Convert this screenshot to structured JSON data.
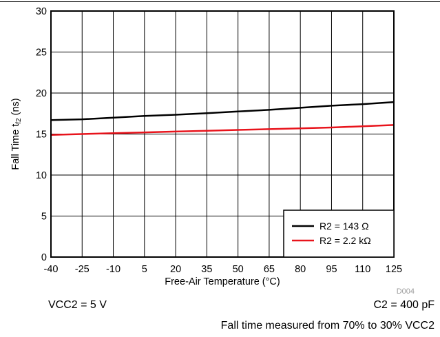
{
  "chart_data": {
    "type": "line",
    "xlabel": "Free-Air Temperature (°C)",
    "ylabel_prefix": "Fall Time t",
    "ylabel_sub": "f2",
    "ylabel_suffix": " (ns)",
    "xlim": [
      -40,
      125
    ],
    "ylim": [
      0,
      30
    ],
    "xticks": [
      -40,
      -25,
      -10,
      5,
      20,
      35,
      50,
      65,
      80,
      95,
      110,
      125
    ],
    "yticks": [
      0,
      5,
      10,
      15,
      20,
      25,
      30
    ],
    "grid": true,
    "legend_position": "bottom-right",
    "figure_id": "D004",
    "x": [
      -40,
      -25,
      -10,
      5,
      20,
      35,
      50,
      65,
      80,
      95,
      110,
      125
    ],
    "series": [
      {
        "name": "R2 = 143 Ω",
        "color": "#000000",
        "values": [
          16.7,
          16.8,
          17.0,
          17.2,
          17.35,
          17.55,
          17.75,
          17.95,
          18.2,
          18.45,
          18.65,
          18.9
        ]
      },
      {
        "name": "R2 = 2.2 kΩ",
        "color": "#e8141c",
        "values": [
          14.9,
          15.0,
          15.1,
          15.2,
          15.3,
          15.4,
          15.5,
          15.6,
          15.7,
          15.8,
          15.95,
          16.1
        ]
      }
    ]
  },
  "notes": {
    "vcc": "VCC2 = 5 V",
    "c2": "C2 = 400 pF",
    "fall": "Fall time measured from 70% to 30% VCC2"
  }
}
